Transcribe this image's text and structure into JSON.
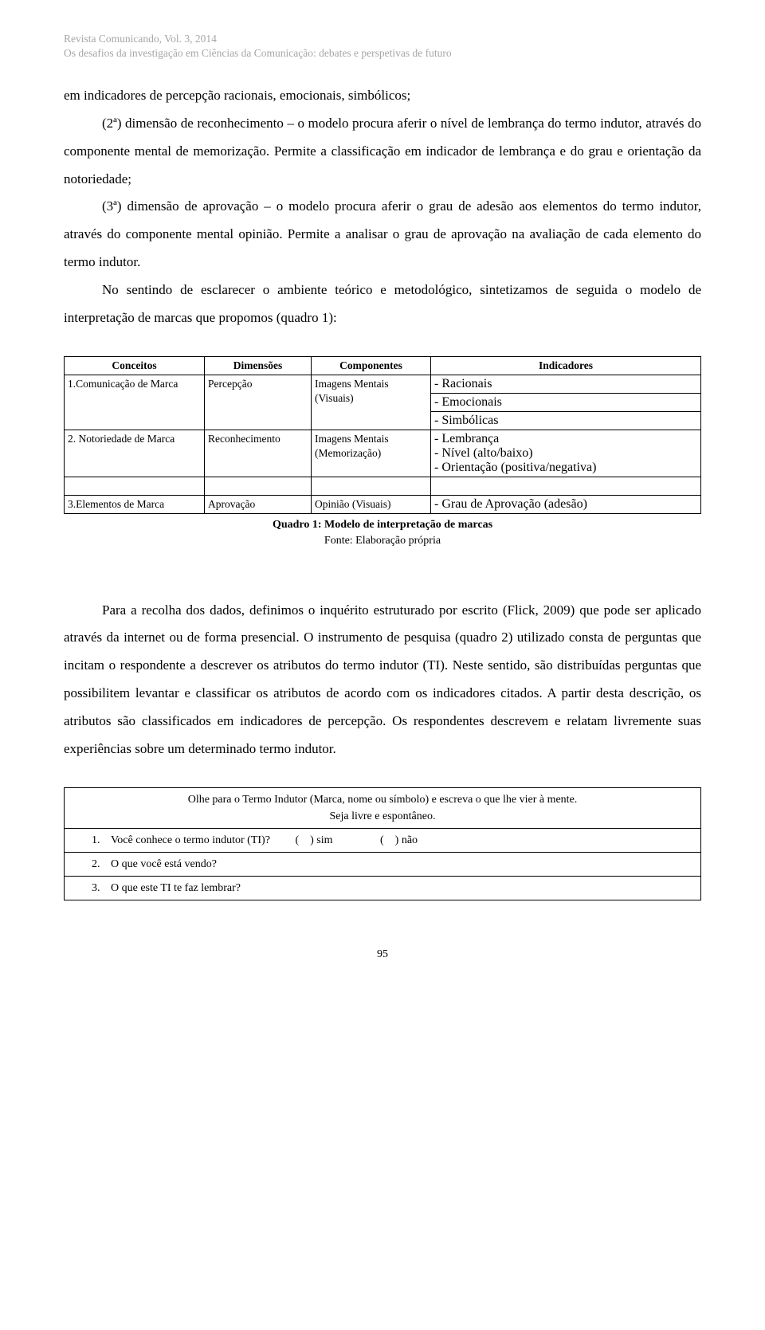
{
  "header": {
    "line1": "Revista Comunicando, Vol. 3, 2014",
    "line2": "Os desafios da investigação em Ciências da Comunicação: debates e perspetivas de futuro"
  },
  "paragraphs": {
    "p1": "em indicadores de percepção racionais, emocionais, simbólicos;",
    "p2": "(2ª) dimensão de reconhecimento – o modelo procura aferir o nível de lembrança do termo indutor, através do componente mental de memorização. Permite a classificação em indicador de lembrança e do grau e orientação da notoriedade;",
    "p3": "(3ª) dimensão de aprovação – o modelo procura aferir o grau de adesão aos elementos do termo indutor, através do componente mental opinião. Permite a analisar o grau de aprovação na avaliação de cada elemento do termo indutor.",
    "p4": "No sentindo de esclarecer o ambiente teórico e metodológico, sintetizamos de seguida o modelo de interpretação de marcas que propomos (quadro 1):",
    "p5": "Para a recolha dos dados, definimos o inquérito estruturado por escrito (Flick, 2009) que pode ser aplicado através da internet ou de forma presencial. O instrumento de pesquisa (quadro 2)  utilizado consta de perguntas que incitam o respondente a descrever os atributos do termo indutor (TI). Neste sentido, são distribuídas perguntas que possibilitem levantar e classificar os atributos de acordo com os indicadores citados. A partir desta descrição, os atributos são classificados em indicadores de percepção. Os respondentes descrevem e relatam  livremente suas experiências sobre um determinado termo indutor."
  },
  "table1": {
    "headers": {
      "conceitos": "Conceitos",
      "dimensoes": "Dimensões",
      "componentes": "Componentes",
      "indicadores": "Indicadores"
    },
    "rows": [
      {
        "conceito": "1.Comunicação de Marca",
        "dimensao": "Percepção",
        "componente": "Imagens Mentais (Visuais)",
        "indicadores": [
          "- Racionais",
          "- Emocionais",
          "- Simbólicas"
        ]
      },
      {
        "conceito": "2. Notoriedade de Marca",
        "dimensao": "Reconhecimento",
        "componente": "Imagens Mentais (Memorização)",
        "indicadores": [
          "- Lembrança\n- Nível (alto/baixo)\n- Orientação (positiva/negativa)"
        ]
      },
      {
        "conceito": "3.Elementos de Marca",
        "dimensao": "Aprovação",
        "componente": "Opinião (Visuais)",
        "indicadores": [
          "- Grau de Aprovação (adesão)"
        ]
      }
    ],
    "caption_bold": "Quadro 1: Modelo de interpretação de marcas",
    "caption_sub": "Fonte: Elaboração própria"
  },
  "table2": {
    "intro1": "Olhe para o Termo Indutor (Marca, nome ou símbolo) e escreva o que lhe vier à mente.",
    "intro2": "Seja livre e espontâneo.",
    "q1_num": "1.",
    "q1": "Você conhece o termo indutor (TI)?         (    ) sim                 (    ) não",
    "q2_num": "2.",
    "q2": "O que você está vendo?",
    "q3_num": "3.",
    "q3": "O que este TI te faz lembrar?"
  },
  "page_number": "95"
}
